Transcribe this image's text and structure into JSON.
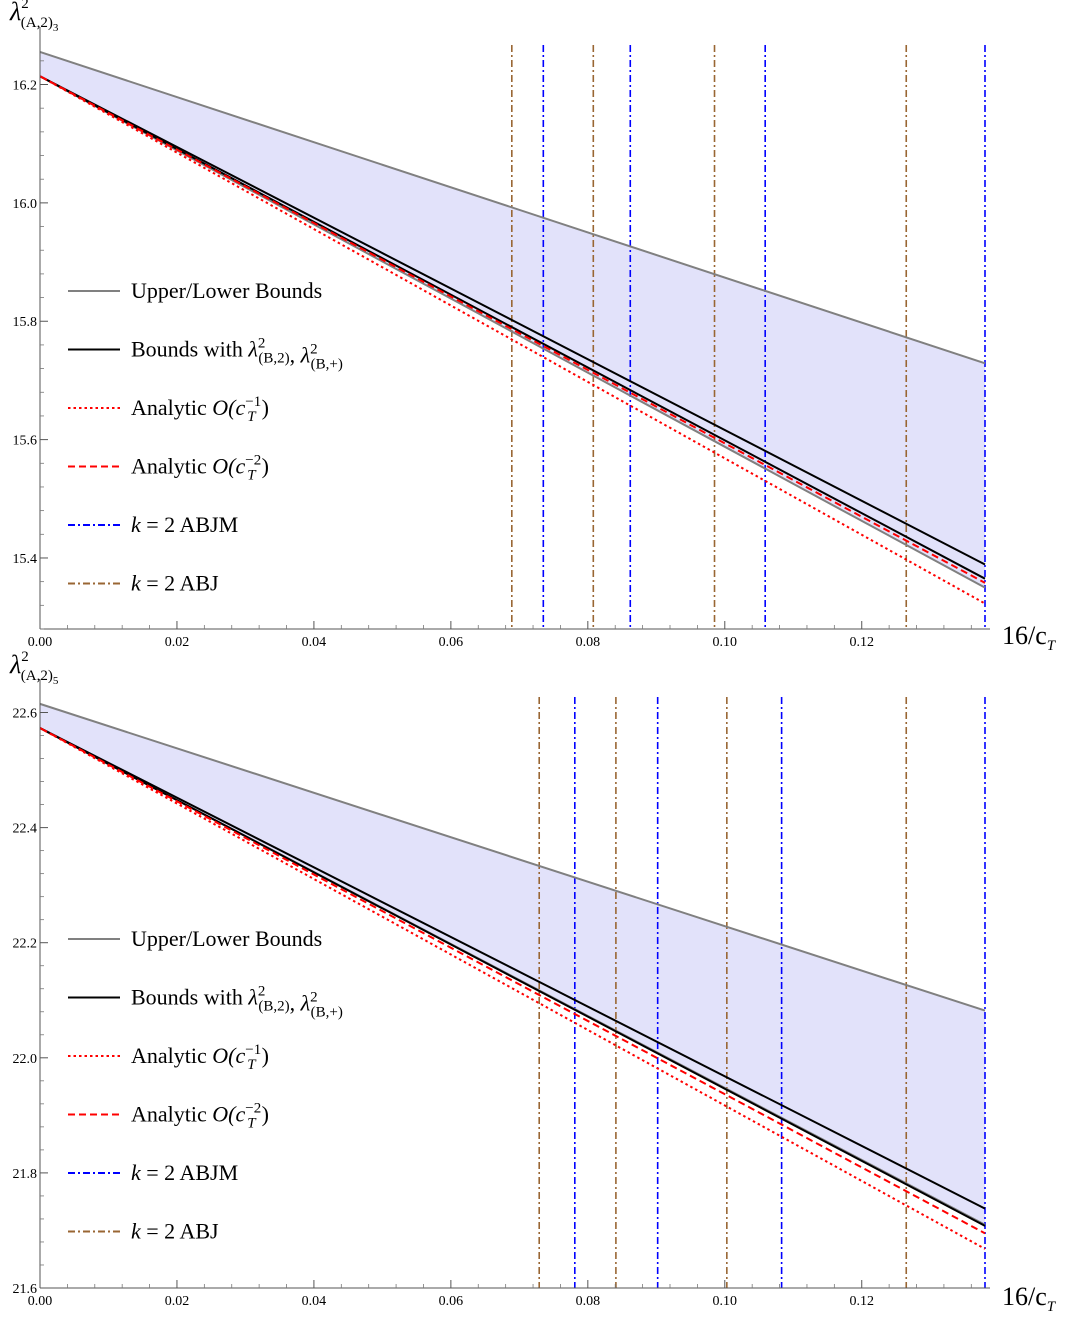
{
  "chart_data": [
    {
      "type": "line",
      "ylabel": "λ²(A,2)₃",
      "ylabel_parts": {
        "base": "λ",
        "sup": "2",
        "sub": "(A,2)",
        "subsub": "3"
      },
      "xlabel": "16/c_T",
      "xlabel_parts": {
        "text": "16/c",
        "sub": "T"
      },
      "xlim": [
        0,
        0.138
      ],
      "ylim": [
        15.28,
        16.26
      ],
      "xticks": [
        0.0,
        0.02,
        0.04,
        0.06,
        0.08,
        0.1,
        0.12
      ],
      "xtick_labels": [
        "0.00",
        "0.02",
        "0.04",
        "0.06",
        "0.08",
        "0.10",
        "0.12"
      ],
      "yticks": [
        15.4,
        15.6,
        15.8,
        16.0,
        16.2
      ],
      "ytick_labels": [
        "15.4",
        "15.6",
        "15.8",
        "16.0",
        "16.2"
      ],
      "shaded_region": {
        "color": "#e2e2fa",
        "x": [
          0,
          0.138
        ],
        "upper": [
          16.255,
          15.729
        ],
        "lower": [
          16.214,
          15.35
        ]
      },
      "series": [
        {
          "name": "Upper/Lower Bounds",
          "style": "solid",
          "color": "#808080",
          "lines": [
            {
              "x": [
                0,
                0.138
              ],
              "y": [
                16.255,
                15.729
              ]
            },
            {
              "x": [
                0,
                0.138
              ],
              "y": [
                16.214,
                15.35
              ]
            }
          ]
        },
        {
          "name": "Bounds with λ²(B,2), λ²(B,+)",
          "style": "solid",
          "color": "#000000",
          "lines": [
            {
              "x": [
                0,
                0.138
              ],
              "y": [
                16.214,
                15.389
              ]
            },
            {
              "x": [
                0,
                0.138
              ],
              "y": [
                16.214,
                15.365
              ]
            }
          ]
        },
        {
          "name": "Analytic O(c_T^-1)",
          "style": "dotted",
          "color": "#ff0000",
          "lines": [
            {
              "x": [
                0,
                0.138
              ],
              "y": [
                16.214,
                15.323
              ]
            }
          ]
        },
        {
          "name": "Analytic O(c_T^-2)",
          "style": "dashed",
          "color": "#ff0000",
          "lines": [
            {
              "x": [
                0,
                0.138
              ],
              "y": [
                16.214,
                15.358
              ]
            }
          ]
        }
      ],
      "vlines": [
        {
          "series": "k = 2 ABJM",
          "color": "#0000ff",
          "x": [
            0.0735,
            0.0862,
            0.1059,
            0.138
          ]
        },
        {
          "series": "k = 2 ABJ",
          "color": "#996633",
          "x": [
            0.0689,
            0.0808,
            0.0985,
            0.1265
          ]
        }
      ],
      "legend": {
        "placement": "left-middle",
        "entries": [
          {
            "label": "Upper/Lower Bounds",
            "style": "solid",
            "color": "#808080"
          },
          {
            "label_text": "Bounds with ",
            "math": [
              {
                "base": "λ",
                "sup": "2",
                "sub": "(B,2)"
              },
              {
                "base": "λ",
                "sup": "2",
                "sub": "(B,+)"
              }
            ],
            "style": "solid",
            "color": "#000000"
          },
          {
            "label_text": "Analytic ",
            "math_text": "O(c",
            "sub": "T",
            "sup": "−1",
            "close": ")",
            "style": "dotted",
            "color": "#ff0000"
          },
          {
            "label_text": "Analytic ",
            "math_text": "O(c",
            "sub": "T",
            "sup": "−2",
            "close": ")",
            "style": "dashed",
            "color": "#ff0000"
          },
          {
            "label_k": "k",
            "label_rest": " = 2 ABJM",
            "style": "dashdot",
            "color": "#0000ff"
          },
          {
            "label_k": "k",
            "label_rest": " = 2 ABJ",
            "style": "dashdot",
            "color": "#996633"
          }
        ]
      }
    },
    {
      "type": "line",
      "ylabel": "λ²(A,2)₅",
      "ylabel_parts": {
        "base": "λ",
        "sup": "2",
        "sub": "(A,2)",
        "subsub": "5"
      },
      "xlabel": "16/c_T",
      "xlabel_parts": {
        "text": "16/c",
        "sub": "T"
      },
      "xlim": [
        0,
        0.138
      ],
      "ylim": [
        21.6,
        22.62
      ],
      "xticks": [
        0.0,
        0.02,
        0.04,
        0.06,
        0.08,
        0.1,
        0.12
      ],
      "xtick_labels": [
        "0.00",
        "0.02",
        "0.04",
        "0.06",
        "0.08",
        "0.10",
        "0.12"
      ],
      "yticks": [
        21.6,
        21.8,
        22.0,
        22.2,
        22.4,
        22.6
      ],
      "ytick_labels": [
        "21.6",
        "21.8",
        "22.0",
        "22.2",
        "22.4",
        "22.6"
      ],
      "shaded_region": {
        "color": "#e2e2fa",
        "x": [
          0,
          0.138
        ],
        "upper": [
          22.615,
          22.082
        ],
        "lower": [
          22.573,
          21.71
        ]
      },
      "series": [
        {
          "name": "Upper/Lower Bounds",
          "style": "solid",
          "color": "#808080",
          "lines": [
            {
              "x": [
                0,
                0.138
              ],
              "y": [
                22.615,
                22.082
              ]
            },
            {
              "x": [
                0,
                0.138
              ],
              "y": [
                22.573,
                21.71
              ]
            }
          ]
        },
        {
          "name": "Bounds with λ²(B,2), λ²(B,+)",
          "style": "solid",
          "color": "#000000",
          "lines": [
            {
              "x": [
                0,
                0.138
              ],
              "y": [
                22.573,
                21.738
              ]
            },
            {
              "x": [
                0,
                0.138
              ],
              "y": [
                22.573,
                21.708
              ]
            }
          ]
        },
        {
          "name": "Analytic O(c_T^-1)",
          "style": "dotted",
          "color": "#ff0000",
          "lines": [
            {
              "x": [
                0,
                0.138
              ],
              "y": [
                22.573,
                21.668
              ]
            }
          ]
        },
        {
          "name": "Analytic O(c_T^-2)",
          "style": "dashed",
          "color": "#ff0000",
          "lines": [
            {
              "x": [
                0,
                0.138
              ],
              "y": [
                22.573,
                21.695
              ]
            }
          ]
        }
      ],
      "vlines": [
        {
          "series": "k = 2 ABJM",
          "color": "#0000ff",
          "x": [
            0.0781,
            0.0902,
            0.1083,
            0.138
          ]
        },
        {
          "series": "k = 2 ABJ",
          "color": "#996633",
          "x": [
            0.0729,
            0.0841,
            0.1003,
            0.1265
          ]
        }
      ],
      "legend": {
        "placement": "left-middle",
        "entries": [
          {
            "label": "Upper/Lower Bounds",
            "style": "solid",
            "color": "#808080"
          },
          {
            "label_text": "Bounds with ",
            "math": [
              {
                "base": "λ",
                "sup": "2",
                "sub": "(B,2)"
              },
              {
                "base": "λ",
                "sup": "2",
                "sub": "(B,+)"
              }
            ],
            "style": "solid",
            "color": "#000000"
          },
          {
            "label_text": "Analytic ",
            "math_text": "O(c",
            "sub": "T",
            "sup": "−1",
            "close": ")",
            "style": "dotted",
            "color": "#ff0000"
          },
          {
            "label_text": "Analytic ",
            "math_text": "O(c",
            "sub": "T",
            "sup": "−2",
            "close": ")",
            "style": "dashed",
            "color": "#ff0000"
          },
          {
            "label_k": "k",
            "label_rest": " = 2 ABJM",
            "style": "dashdot",
            "color": "#0000ff"
          },
          {
            "label_k": "k",
            "label_rest": " = 2 ABJ",
            "style": "dashdot",
            "color": "#996633"
          }
        ]
      }
    }
  ]
}
